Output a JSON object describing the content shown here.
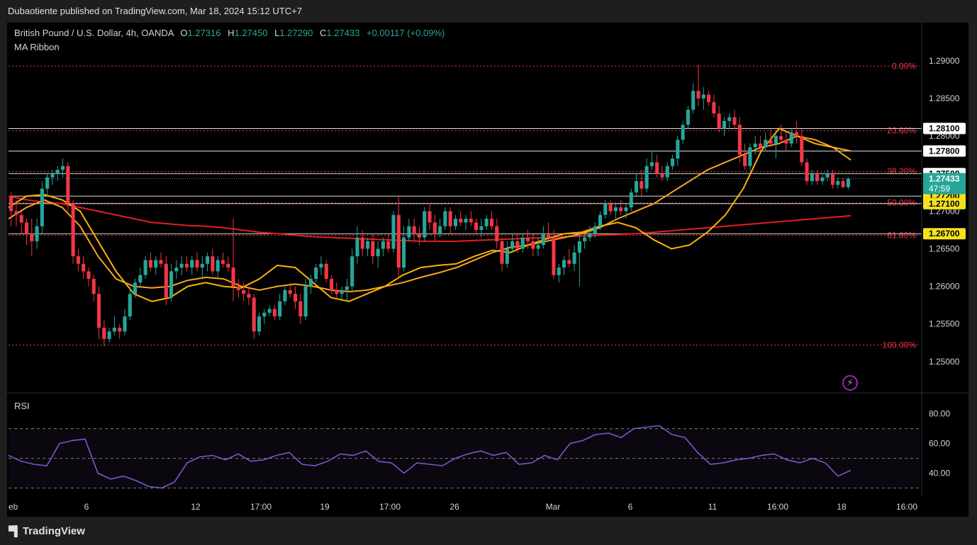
{
  "header": {
    "published": "Dubaotiente published on TradingView.com, Mar 18, 2024 15:12 UTC+7"
  },
  "legend": {
    "symbol": "British Pound / U.S. Dollar, 4h, OANDA",
    "o_label": "O",
    "o_value": "1.27316",
    "h_label": "H",
    "h_value": "1.27450",
    "l_label": "L",
    "l_value": "1.27290",
    "c_label": "C",
    "c_value": "1.27433",
    "change": "+0.00117 (+0.09%)"
  },
  "indicators": {
    "ma_ribbon": "MA Ribbon",
    "rsi": "RSI"
  },
  "footer": {
    "brand": "TradingView"
  },
  "colors": {
    "up": "#26a69a",
    "down": "#f23645",
    "ma_fast": "#ffb300",
    "ma_mid": "#f5a623",
    "ma_slow": "#e61e1e",
    "fib": "#f23645",
    "rsi": "#7e57c2",
    "bg": "#000000"
  },
  "chart_data": {
    "type": "candlestick",
    "price_axis": {
      "range": [
        1.2465,
        1.2915
      ],
      "ticks": [
        "1.29000",
        "1.28500",
        "1.28000",
        "1.27500",
        "1.27000",
        "1.26500",
        "1.26000",
        "1.25500",
        "1.25000"
      ]
    },
    "time_axis_labels": [
      "eb",
      "6",
      "12",
      "17:00",
      "19",
      "17:00",
      "26",
      "Mar",
      "6",
      "11",
      "16:00",
      "18",
      "16:00"
    ],
    "fib_levels": [
      {
        "label": "0.00%",
        "price": 1.2893
      },
      {
        "label": "23.60%",
        "price": 1.2807
      },
      {
        "label": "38.20%",
        "price": 1.2753
      },
      {
        "label": "50.00%",
        "price": 1.2711
      },
      {
        "label": "61.80%",
        "price": 1.2668
      },
      {
        "label": "100.00%",
        "price": 1.2522
      }
    ],
    "horizontal_lines": [
      "1.28100",
      "1.27800",
      "1.27500",
      "1.27200",
      "1.27100",
      "1.26700"
    ],
    "current_price": {
      "value": "1.27433",
      "countdown": "47:59"
    },
    "candles": [
      [
        1.272,
        1.2725,
        1.268,
        1.27
      ],
      [
        1.27,
        1.2715,
        1.268,
        1.2695
      ],
      [
        1.2695,
        1.27,
        1.267,
        1.2685
      ],
      [
        1.2685,
        1.269,
        1.2655,
        1.267
      ],
      [
        1.267,
        1.269,
        1.264,
        1.266
      ],
      [
        1.266,
        1.269,
        1.265,
        1.268
      ],
      [
        1.268,
        1.274,
        1.267,
        1.273
      ],
      [
        1.273,
        1.275,
        1.272,
        1.2745
      ],
      [
        1.2745,
        1.2755,
        1.2735,
        1.275
      ],
      [
        1.275,
        1.276,
        1.274,
        1.2755
      ],
      [
        1.2755,
        1.277,
        1.2745,
        1.276
      ],
      [
        1.276,
        1.2765,
        1.27,
        1.271
      ],
      [
        1.271,
        1.2715,
        1.263,
        1.264
      ],
      [
        1.264,
        1.265,
        1.262,
        1.263
      ],
      [
        1.263,
        1.264,
        1.261,
        1.262
      ],
      [
        1.262,
        1.2625,
        1.26,
        1.261
      ],
      [
        1.261,
        1.2615,
        1.258,
        1.259
      ],
      [
        1.259,
        1.26,
        1.253,
        1.2545
      ],
      [
        1.2545,
        1.2555,
        1.252,
        1.253
      ],
      [
        1.253,
        1.2545,
        1.2525,
        1.254
      ],
      [
        1.254,
        1.256,
        1.2535,
        1.2545
      ],
      [
        1.2545,
        1.255,
        1.253,
        1.254
      ],
      [
        1.254,
        1.257,
        1.2535,
        1.256
      ],
      [
        1.256,
        1.26,
        1.2555,
        1.259
      ],
      [
        1.259,
        1.261,
        1.2585,
        1.2605
      ],
      [
        1.2605,
        1.2625,
        1.26,
        1.2615
      ],
      [
        1.2615,
        1.264,
        1.261,
        1.2635
      ],
      [
        1.2635,
        1.2645,
        1.262,
        1.2625
      ],
      [
        1.2625,
        1.264,
        1.2615,
        1.2635
      ],
      [
        1.2635,
        1.2645,
        1.2625,
        1.263
      ],
      [
        1.263,
        1.264,
        1.2575,
        1.2585
      ],
      [
        1.2585,
        1.263,
        1.258,
        1.262
      ],
      [
        1.262,
        1.2635,
        1.261,
        1.2625
      ],
      [
        1.2625,
        1.264,
        1.2615,
        1.263
      ],
      [
        1.263,
        1.264,
        1.262,
        1.2625
      ],
      [
        1.2625,
        1.264,
        1.2615,
        1.2635
      ],
      [
        1.2635,
        1.2645,
        1.262,
        1.2625
      ],
      [
        1.2625,
        1.264,
        1.261,
        1.263
      ],
      [
        1.263,
        1.2645,
        1.262,
        1.264
      ],
      [
        1.264,
        1.265,
        1.2615,
        1.262
      ],
      [
        1.262,
        1.264,
        1.261,
        1.2635
      ],
      [
        1.2635,
        1.2645,
        1.2625,
        1.263
      ],
      [
        1.263,
        1.264,
        1.262,
        1.2625
      ],
      [
        1.2625,
        1.269,
        1.258,
        1.26
      ],
      [
        1.26,
        1.261,
        1.2585,
        1.2595
      ],
      [
        1.2595,
        1.2605,
        1.258,
        1.259
      ],
      [
        1.259,
        1.26,
        1.2575,
        1.2585
      ],
      [
        1.2585,
        1.259,
        1.253,
        1.254
      ],
      [
        1.254,
        1.2565,
        1.2535,
        1.256
      ],
      [
        1.256,
        1.257,
        1.255,
        1.2565
      ],
      [
        1.2565,
        1.2575,
        1.256,
        1.257
      ],
      [
        1.257,
        1.2575,
        1.2555,
        1.256
      ],
      [
        1.256,
        1.259,
        1.2555,
        1.258
      ],
      [
        1.258,
        1.26,
        1.2575,
        1.2595
      ],
      [
        1.2595,
        1.2605,
        1.2585,
        1.259
      ],
      [
        1.259,
        1.26,
        1.257,
        1.258
      ],
      [
        1.258,
        1.259,
        1.255,
        1.256
      ],
      [
        1.256,
        1.261,
        1.2555,
        1.26
      ],
      [
        1.26,
        1.2615,
        1.259,
        1.261
      ],
      [
        1.261,
        1.263,
        1.2605,
        1.2625
      ],
      [
        1.2625,
        1.264,
        1.2615,
        1.263
      ],
      [
        1.263,
        1.2635,
        1.2605,
        1.261
      ],
      [
        1.261,
        1.2615,
        1.259,
        1.2595
      ],
      [
        1.2595,
        1.2605,
        1.2585,
        1.259
      ],
      [
        1.259,
        1.26,
        1.258,
        1.2595
      ],
      [
        1.2595,
        1.261,
        1.258,
        1.26
      ],
      [
        1.26,
        1.265,
        1.2595,
        1.264
      ],
      [
        1.264,
        1.268,
        1.263,
        1.2665
      ],
      [
        1.2665,
        1.2675,
        1.264,
        1.265
      ],
      [
        1.265,
        1.2665,
        1.264,
        1.266
      ],
      [
        1.266,
        1.267,
        1.263,
        1.264
      ],
      [
        1.264,
        1.266,
        1.2625,
        1.265
      ],
      [
        1.265,
        1.2665,
        1.264,
        1.266
      ],
      [
        1.266,
        1.267,
        1.2645,
        1.265
      ],
      [
        1.265,
        1.27,
        1.2645,
        1.2695
      ],
      [
        1.2695,
        1.272,
        1.261,
        1.2625
      ],
      [
        1.2625,
        1.268,
        1.262,
        1.2665
      ],
      [
        1.2665,
        1.269,
        1.266,
        1.268
      ],
      [
        1.268,
        1.269,
        1.266,
        1.267
      ],
      [
        1.267,
        1.268,
        1.2655,
        1.2665
      ],
      [
        1.2665,
        1.2705,
        1.266,
        1.27
      ],
      [
        1.27,
        1.271,
        1.2675,
        1.2685
      ],
      [
        1.2685,
        1.2695,
        1.266,
        1.267
      ],
      [
        1.267,
        1.269,
        1.2665,
        1.268
      ],
      [
        1.268,
        1.2705,
        1.2675,
        1.27
      ],
      [
        1.27,
        1.2705,
        1.267,
        1.268
      ],
      [
        1.268,
        1.2695,
        1.2675,
        1.269
      ],
      [
        1.269,
        1.27,
        1.268,
        1.2685
      ],
      [
        1.2685,
        1.2695,
        1.2675,
        1.269
      ],
      [
        1.269,
        1.27,
        1.268,
        1.2685
      ],
      [
        1.2685,
        1.269,
        1.267,
        1.2675
      ],
      [
        1.2675,
        1.269,
        1.2665,
        1.268
      ],
      [
        1.268,
        1.2695,
        1.2675,
        1.269
      ],
      [
        1.269,
        1.27,
        1.2675,
        1.268
      ],
      [
        1.268,
        1.269,
        1.265,
        1.266
      ],
      [
        1.266,
        1.2665,
        1.262,
        1.263
      ],
      [
        1.263,
        1.266,
        1.2625,
        1.265
      ],
      [
        1.265,
        1.267,
        1.2645,
        1.266
      ],
      [
        1.266,
        1.267,
        1.2645,
        1.265
      ],
      [
        1.265,
        1.267,
        1.2645,
        1.2665
      ],
      [
        1.2665,
        1.2675,
        1.265,
        1.266
      ],
      [
        1.266,
        1.267,
        1.264,
        1.265
      ],
      [
        1.265,
        1.2665,
        1.264,
        1.2655
      ],
      [
        1.2655,
        1.268,
        1.265,
        1.267
      ],
      [
        1.267,
        1.2685,
        1.266,
        1.2665
      ],
      [
        1.2665,
        1.2675,
        1.261,
        1.2615
      ],
      [
        1.2615,
        1.263,
        1.2605,
        1.2625
      ],
      [
        1.2625,
        1.264,
        1.2615,
        1.2635
      ],
      [
        1.2635,
        1.265,
        1.2625,
        1.263
      ],
      [
        1.263,
        1.2655,
        1.262,
        1.2645
      ],
      [
        1.2645,
        1.267,
        1.26,
        1.266
      ],
      [
        1.266,
        1.267,
        1.265,
        1.2665
      ],
      [
        1.2665,
        1.268,
        1.266,
        1.267
      ],
      [
        1.267,
        1.2685,
        1.2665,
        1.268
      ],
      [
        1.268,
        1.27,
        1.2675,
        1.2695
      ],
      [
        1.2695,
        1.2715,
        1.269,
        1.271
      ],
      [
        1.271,
        1.2715,
        1.2695,
        1.27
      ],
      [
        1.27,
        1.271,
        1.269,
        1.2705
      ],
      [
        1.2705,
        1.2715,
        1.2695,
        1.27
      ],
      [
        1.27,
        1.271,
        1.269,
        1.2705
      ],
      [
        1.2705,
        1.273,
        1.27,
        1.2725
      ],
      [
        1.2725,
        1.275,
        1.272,
        1.274
      ],
      [
        1.274,
        1.2755,
        1.272,
        1.273
      ],
      [
        1.273,
        1.277,
        1.2725,
        1.276
      ],
      [
        1.276,
        1.278,
        1.2755,
        1.2765
      ],
      [
        1.2765,
        1.2775,
        1.2745,
        1.275
      ],
      [
        1.275,
        1.276,
        1.274,
        1.2745
      ],
      [
        1.2745,
        1.2765,
        1.274,
        1.276
      ],
      [
        1.276,
        1.2775,
        1.2755,
        1.277
      ],
      [
        1.277,
        1.28,
        1.276,
        1.2795
      ],
      [
        1.2795,
        1.282,
        1.279,
        1.2815
      ],
      [
        1.2815,
        1.284,
        1.281,
        1.2835
      ],
      [
        1.2835,
        1.287,
        1.283,
        1.286
      ],
      [
        1.286,
        1.2895,
        1.284,
        1.285
      ],
      [
        1.285,
        1.2865,
        1.2835,
        1.2855
      ],
      [
        1.2855,
        1.286,
        1.284,
        1.2845
      ],
      [
        1.2845,
        1.2855,
        1.2825,
        1.283
      ],
      [
        1.283,
        1.284,
        1.2805,
        1.281
      ],
      [
        1.281,
        1.2825,
        1.28,
        1.282
      ],
      [
        1.282,
        1.283,
        1.281,
        1.2825
      ],
      [
        1.2825,
        1.2835,
        1.281,
        1.2815
      ],
      [
        1.2815,
        1.2825,
        1.2765,
        1.2775
      ],
      [
        1.2775,
        1.279,
        1.2755,
        1.276
      ],
      [
        1.276,
        1.279,
        1.2755,
        1.2785
      ],
      [
        1.2785,
        1.28,
        1.2775,
        1.279
      ],
      [
        1.279,
        1.28,
        1.278,
        1.2785
      ],
      [
        1.2785,
        1.2805,
        1.278,
        1.2795
      ],
      [
        1.2795,
        1.281,
        1.2785,
        1.279
      ],
      [
        1.279,
        1.2805,
        1.277,
        1.28
      ],
      [
        1.28,
        1.2815,
        1.279,
        1.2795
      ],
      [
        1.2795,
        1.2805,
        1.278,
        1.279
      ],
      [
        1.279,
        1.281,
        1.2785,
        1.2805
      ],
      [
        1.2805,
        1.282,
        1.279,
        1.28
      ],
      [
        1.28,
        1.281,
        1.276,
        1.2765
      ],
      [
        1.2765,
        1.277,
        1.2735,
        1.274
      ],
      [
        1.274,
        1.2755,
        1.2735,
        1.275
      ],
      [
        1.275,
        1.2755,
        1.2735,
        1.274
      ],
      [
        1.274,
        1.275,
        1.2735,
        1.2745
      ],
      [
        1.2745,
        1.2755,
        1.274,
        1.275
      ],
      [
        1.275,
        1.2755,
        1.273,
        1.2735
      ],
      [
        1.2735,
        1.2745,
        1.273,
        1.274
      ],
      [
        1.274,
        1.2745,
        1.273,
        1.2732
      ],
      [
        1.2732,
        1.2745,
        1.2729,
        1.2743
      ]
    ],
    "ma_fast": [
      1.2705,
      1.272,
      1.2722,
      1.2715,
      1.27,
      1.266,
      1.262,
      1.259,
      1.258,
      1.2585,
      1.26,
      1.2605,
      1.26,
      1.2598,
      1.261,
      1.2628,
      1.2625,
      1.2605,
      1.2585,
      1.258,
      1.259,
      1.26,
      1.2615,
      1.2625,
      1.2628,
      1.263,
      1.264,
      1.2648,
      1.2645,
      1.2655,
      1.2663,
      1.267,
      1.2672,
      1.268,
      1.2685,
      1.2678,
      1.2662,
      1.265,
      1.2655,
      1.2672,
      1.2695,
      1.273,
      1.278,
      1.281,
      1.28,
      1.279,
      1.2785,
      1.278
    ],
    "ma_mid": [
      1.269,
      1.2705,
      1.2715,
      1.2705,
      1.268,
      1.264,
      1.261,
      1.26,
      1.2598,
      1.26,
      1.2608,
      1.2612,
      1.261,
      1.26,
      1.2595,
      1.26,
      1.2603,
      1.26,
      1.2595,
      1.2593,
      1.2595,
      1.26,
      1.2605,
      1.2612,
      1.2618,
      1.2625,
      1.2635,
      1.2645,
      1.2652,
      1.2655,
      1.266,
      1.2665,
      1.267,
      1.2678,
      1.269,
      1.27,
      1.271,
      1.2725,
      1.274,
      1.2755,
      1.2765,
      1.2775,
      1.2785,
      1.279,
      1.28,
      1.2795,
      1.2785,
      1.2768
    ],
    "ma_slow": [
      1.272,
      1.2715,
      1.2712,
      1.271,
      1.2705,
      1.27,
      1.2695,
      1.269,
      1.2685,
      1.2683,
      1.2681,
      1.268,
      1.2678,
      1.2675,
      1.2672,
      1.267,
      1.2668,
      1.2666,
      1.2665,
      1.2664,
      1.2663,
      1.2662,
      1.2661,
      1.266,
      1.266,
      1.266,
      1.2661,
      1.2662,
      1.2663,
      1.2664,
      1.2665,
      1.2666,
      1.2667,
      1.2668,
      1.2669,
      1.267,
      1.2672,
      1.2674,
      1.2676,
      1.2678,
      1.268,
      1.2682,
      1.2684,
      1.2686,
      1.2688,
      1.269,
      1.2692,
      1.2694
    ],
    "rsi": {
      "ticks": [
        "80.00",
        "60.00",
        "40.00"
      ],
      "levels": [
        70,
        50,
        30
      ],
      "values": [
        52,
        48,
        46,
        45,
        60,
        62,
        63,
        40,
        36,
        38,
        35,
        31,
        30,
        34,
        47,
        51,
        52,
        49,
        53,
        48,
        49,
        52,
        54,
        46,
        45,
        48,
        53,
        52,
        55,
        48,
        47,
        40,
        47,
        46,
        45,
        50,
        53,
        55,
        52,
        54,
        46,
        47,
        52,
        49,
        60,
        62,
        66,
        67,
        64,
        70,
        71,
        72,
        66,
        64,
        54,
        46,
        47,
        49,
        50,
        52,
        53,
        49,
        47,
        50,
        47,
        38,
        42
      ]
    }
  }
}
